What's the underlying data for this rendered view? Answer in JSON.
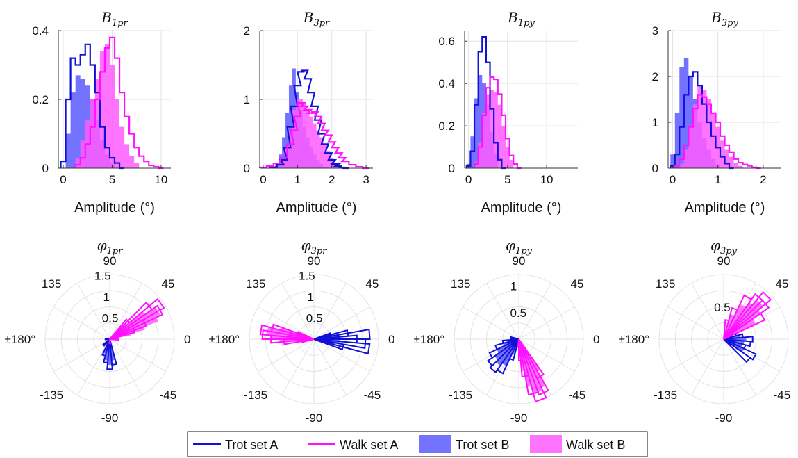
{
  "series_styles": [
    {
      "name": "Trot set A",
      "color": "#1010d8",
      "style": "outline"
    },
    {
      "name": "Walk set A",
      "color": "#ff10ff",
      "style": "outline"
    },
    {
      "name": "Trot set B",
      "color": "#5a5aff",
      "style": "filled"
    },
    {
      "name": "Walk set B",
      "color": "#ff5cff",
      "style": "filled"
    }
  ],
  "legend": {
    "labels": [
      "Trot set A",
      "Walk set A",
      "Trot set B",
      "Walk set B"
    ],
    "placement": "bottom-center"
  },
  "chart_data": [
    {
      "type": "bar",
      "histogram": true,
      "title_main": "B",
      "title_sub": "1pr",
      "xlabel": "Amplitude  (°)",
      "xlim": [
        -0.5,
        11
      ],
      "ylim": [
        0,
        0.4
      ],
      "xticks": [
        0,
        5,
        10
      ],
      "yticks": [
        0,
        0.2,
        0.4
      ],
      "grid": true,
      "series": [
        {
          "name": "Trot set A",
          "x": [
            0.0,
            0.5,
            1.0,
            1.5,
            2.0,
            2.5,
            3.0,
            3.5,
            4.0,
            4.5,
            5.0,
            5.5,
            6.0
          ],
          "values": [
            0.02,
            0.2,
            0.32,
            0.3,
            0.33,
            0.36,
            0.3,
            0.22,
            0.12,
            0.06,
            0.03,
            0.015,
            0
          ]
        },
        {
          "name": "Walk set A",
          "x": [
            1.5,
            2.0,
            2.5,
            3.0,
            3.5,
            4.0,
            4.5,
            5.0,
            5.5,
            6.0,
            6.5,
            7.0,
            7.5,
            8.0,
            8.5,
            9.0,
            9.5,
            10.0
          ],
          "values": [
            0.01,
            0.03,
            0.07,
            0.12,
            0.2,
            0.28,
            0.35,
            0.38,
            0.32,
            0.22,
            0.15,
            0.1,
            0.06,
            0.035,
            0.02,
            0.008,
            0.004,
            0
          ]
        },
        {
          "name": "Trot set B",
          "x": [
            0.5,
            1.0,
            1.5,
            2.0,
            2.5,
            3.0,
            3.5,
            4.0,
            4.5,
            5.0,
            5.5
          ],
          "values": [
            0.1,
            0.22,
            0.27,
            0.26,
            0.24,
            0.2,
            0.14,
            0.08,
            0.04,
            0.015,
            0
          ]
        },
        {
          "name": "Walk set B",
          "x": [
            1.5,
            2.0,
            2.5,
            3.0,
            3.5,
            4.0,
            4.5,
            5.0,
            5.5,
            6.0,
            6.5,
            7.0,
            7.5,
            8.0
          ],
          "values": [
            0.03,
            0.08,
            0.14,
            0.2,
            0.26,
            0.34,
            0.36,
            0.3,
            0.2,
            0.12,
            0.07,
            0.035,
            0.015,
            0
          ]
        }
      ]
    },
    {
      "type": "bar",
      "histogram": true,
      "title_main": "B",
      "title_sub": "3pr",
      "xlabel": "Amplitude  (°)",
      "xlim": [
        -0.1,
        3.2
      ],
      "ylim": [
        0,
        2
      ],
      "xticks": [
        0,
        1,
        2,
        3
      ],
      "yticks": [
        0,
        1,
        2
      ],
      "grid": true,
      "series": [
        {
          "name": "Trot set A",
          "x": [
            0.3,
            0.5,
            0.6,
            0.7,
            0.8,
            0.9,
            1.0,
            1.1,
            1.2,
            1.3,
            1.4,
            1.5,
            1.6,
            1.7,
            1.8,
            1.9,
            2.0,
            2.1,
            2.2,
            2.3,
            2.4
          ],
          "values": [
            0.01,
            0.05,
            0.12,
            0.3,
            0.6,
            0.9,
            1.2,
            1.4,
            1.42,
            1.3,
            1.1,
            0.9,
            0.7,
            0.5,
            0.35,
            0.22,
            0.12,
            0.06,
            0.03,
            0.01,
            0
          ]
        },
        {
          "name": "Walk set A",
          "x": [
            0.0,
            0.2,
            0.4,
            0.6,
            0.8,
            0.9,
            1.0,
            1.1,
            1.2,
            1.3,
            1.4,
            1.5,
            1.6,
            1.7,
            1.8,
            1.9,
            2.0,
            2.1,
            2.2,
            2.3,
            2.4,
            2.6,
            2.8,
            3.0
          ],
          "values": [
            0.01,
            0.03,
            0.07,
            0.15,
            0.35,
            0.55,
            0.75,
            0.95,
            0.9,
            0.85,
            0.8,
            0.82,
            0.75,
            0.65,
            0.55,
            0.48,
            0.38,
            0.3,
            0.22,
            0.15,
            0.1,
            0.05,
            0.02,
            0
          ]
        },
        {
          "name": "Trot set B",
          "x": [
            0.3,
            0.4,
            0.5,
            0.6,
            0.7,
            0.8,
            0.9,
            1.0,
            1.1,
            1.2,
            1.3,
            1.4,
            1.5,
            1.6,
            1.7,
            1.8,
            2.0
          ],
          "values": [
            0.03,
            0.08,
            0.2,
            0.45,
            0.8,
            1.2,
            1.45,
            1.1,
            0.85,
            0.6,
            0.45,
            0.3,
            0.2,
            0.12,
            0.06,
            0.02,
            0
          ]
        },
        {
          "name": "Walk set B",
          "x": [
            0.5,
            0.6,
            0.7,
            0.8,
            0.9,
            1.0,
            1.1,
            1.2,
            1.3,
            1.4,
            1.5,
            1.6,
            1.7,
            1.8,
            1.9,
            2.0,
            2.1,
            2.2,
            2.4
          ],
          "values": [
            0.05,
            0.12,
            0.3,
            0.55,
            0.85,
            1.0,
            1.0,
            0.95,
            0.85,
            0.75,
            0.65,
            0.55,
            0.45,
            0.35,
            0.25,
            0.15,
            0.08,
            0.04,
            0
          ]
        }
      ]
    },
    {
      "type": "bar",
      "histogram": true,
      "title_main": "B",
      "title_sub": "1py",
      "xlabel": "Amplitude  (°)",
      "xlim": [
        -0.5,
        14
      ],
      "ylim": [
        0,
        0.65
      ],
      "xticks": [
        0,
        5,
        10
      ],
      "yticks": [
        0,
        0.2,
        0.4,
        0.6
      ],
      "grid": true,
      "series": [
        {
          "name": "Trot set A",
          "x": [
            0.0,
            0.5,
            1.0,
            1.5,
            2.0,
            2.5,
            3.0,
            3.5,
            4.0,
            4.5
          ],
          "values": [
            0.01,
            0.08,
            0.3,
            0.55,
            0.62,
            0.5,
            0.28,
            0.12,
            0.04,
            0
          ]
        },
        {
          "name": "Walk set A",
          "x": [
            1.0,
            1.5,
            2.0,
            2.5,
            3.0,
            3.5,
            4.0,
            4.5,
            5.0,
            5.5,
            6.0,
            6.5
          ],
          "values": [
            0.02,
            0.1,
            0.25,
            0.38,
            0.43,
            0.42,
            0.35,
            0.25,
            0.14,
            0.06,
            0.02,
            0
          ]
        },
        {
          "name": "Trot set B",
          "x": [
            0.0,
            0.5,
            1.0,
            1.5,
            2.0,
            2.5,
            3.0,
            3.5,
            4.0
          ],
          "values": [
            0.02,
            0.15,
            0.33,
            0.44,
            0.4,
            0.3,
            0.17,
            0.07,
            0
          ]
        },
        {
          "name": "Walk set B",
          "x": [
            1.0,
            1.5,
            2.0,
            2.5,
            3.0,
            3.5,
            4.0,
            4.5,
            5.0,
            5.5,
            6.0
          ],
          "values": [
            0.03,
            0.12,
            0.26,
            0.35,
            0.37,
            0.36,
            0.3,
            0.2,
            0.1,
            0.04,
            0
          ]
        }
      ]
    },
    {
      "type": "bar",
      "histogram": true,
      "title_main": "B",
      "title_sub": "3py",
      "xlabel": "Amplitude  (°)",
      "xlim": [
        -0.1,
        2.4
      ],
      "ylim": [
        0,
        3
      ],
      "xticks": [
        0,
        1,
        2
      ],
      "yticks": [
        0,
        1,
        2,
        3
      ],
      "grid": true,
      "series": [
        {
          "name": "Trot set A",
          "x": [
            0.0,
            0.1,
            0.2,
            0.3,
            0.4,
            0.5,
            0.6,
            0.7,
            0.8,
            0.9,
            1.0,
            1.1,
            1.2,
            1.3
          ],
          "values": [
            0.05,
            0.3,
            0.9,
            1.6,
            2.0,
            2.1,
            1.8,
            1.4,
            1.0,
            0.7,
            0.45,
            0.25,
            0.1,
            0
          ]
        },
        {
          "name": "Walk set A",
          "x": [
            0.1,
            0.2,
            0.3,
            0.4,
            0.5,
            0.6,
            0.7,
            0.8,
            0.9,
            1.0,
            1.1,
            1.2,
            1.3,
            1.4,
            1.5,
            1.6,
            1.7,
            1.8,
            1.9
          ],
          "values": [
            0.05,
            0.2,
            0.5,
            0.9,
            1.3,
            1.6,
            1.55,
            1.4,
            1.2,
            1.0,
            0.7,
            0.5,
            0.35,
            0.2,
            0.12,
            0.08,
            0.05,
            0.02,
            0
          ]
        },
        {
          "name": "Trot set B",
          "x": [
            0.0,
            0.1,
            0.2,
            0.3,
            0.4,
            0.5,
            0.6,
            0.7,
            0.8,
            0.9,
            1.0,
            1.1
          ],
          "values": [
            0.3,
            1.2,
            2.2,
            2.4,
            2.0,
            1.5,
            1.0,
            0.65,
            0.4,
            0.2,
            0.08,
            0
          ]
        },
        {
          "name": "Walk set B",
          "x": [
            0.2,
            0.3,
            0.4,
            0.5,
            0.6,
            0.7,
            0.8,
            0.9,
            1.0,
            1.1,
            1.2,
            1.3,
            1.4,
            1.5,
            1.6
          ],
          "values": [
            0.1,
            0.4,
            0.9,
            1.4,
            1.8,
            1.7,
            1.5,
            1.2,
            0.9,
            0.6,
            0.4,
            0.25,
            0.12,
            0.05,
            0
          ]
        }
      ]
    },
    {
      "type": "polar-histogram",
      "title_main": "φ",
      "title_sub": "1pr",
      "rmax": 1.5,
      "rticks": [
        0.5,
        1,
        1.5
      ],
      "angle_labels": [
        "90",
        "45",
        "0",
        "-45",
        "-90",
        "-135",
        "±180°",
        "135"
      ],
      "series": [
        {
          "name": "Trot set A",
          "theta_deg": [
            -80,
            -90,
            -100,
            -110,
            -135,
            -180,
            45
          ],
          "r": [
            0.6,
            0.7,
            0.55,
            0.4,
            0.2,
            0.1,
            0.3
          ]
        },
        {
          "name": "Walk set A",
          "theta_deg": [
            20,
            25,
            30,
            35,
            40,
            45,
            0,
            -90
          ],
          "r": [
            0.6,
            0.9,
            1.35,
            1.45,
            1.2,
            0.6,
            0.2,
            0.1
          ]
        },
        {
          "name": "Trot set B",
          "theta_deg": [
            -80,
            -90,
            -100,
            -110,
            -135
          ],
          "r": [
            0.5,
            0.6,
            0.5,
            0.35,
            0.15
          ]
        },
        {
          "name": "Walk set B",
          "theta_deg": [
            15,
            20,
            25,
            30,
            35,
            40
          ],
          "r": [
            0.5,
            0.85,
            1.2,
            1.3,
            1.0,
            0.5
          ]
        }
      ]
    },
    {
      "type": "polar-histogram",
      "title_main": "φ",
      "title_sub": "3pr",
      "rmax": 1.5,
      "rticks": [
        0.5,
        1,
        1.5
      ],
      "angle_labels": [
        "90",
        "45",
        "0",
        "-45",
        "-90",
        "-135",
        "±180°",
        "135"
      ],
      "series": [
        {
          "name": "Trot set A",
          "theta_deg": [
            -15,
            -10,
            -5,
            0,
            5,
            10,
            15
          ],
          "r": [
            0.7,
            1.3,
            1.2,
            1.0,
            1.3,
            0.8,
            0.4
          ]
        },
        {
          "name": "Walk set A",
          "theta_deg": [
            160,
            165,
            170,
            175,
            180,
            -175,
            -170
          ],
          "r": [
            0.4,
            1.0,
            1.25,
            1.2,
            1.0,
            0.7,
            0.3
          ]
        },
        {
          "name": "Trot set B",
          "theta_deg": [
            -10,
            -5,
            0,
            5,
            10,
            15
          ],
          "r": [
            0.5,
            0.6,
            0.55,
            0.6,
            0.5,
            0.3
          ]
        },
        {
          "name": "Walk set B",
          "theta_deg": [
            160,
            165,
            170,
            175,
            180,
            -175
          ],
          "r": [
            0.3,
            0.8,
            1.1,
            1.0,
            0.8,
            0.4
          ]
        }
      ]
    },
    {
      "type": "polar-histogram",
      "title_main": "φ",
      "title_sub": "1py",
      "rmax": 1.2,
      "rticks": [
        0.5,
        1
      ],
      "angle_labels": [
        "90",
        "45",
        "0",
        "-45",
        "-90",
        "-135",
        "±180°",
        "135"
      ],
      "series": [
        {
          "name": "Trot set A",
          "theta_deg": [
            -110,
            -120,
            -130,
            -140,
            -150,
            -160,
            -170,
            170
          ],
          "r": [
            0.4,
            0.7,
            0.75,
            0.7,
            0.6,
            0.45,
            0.3,
            0.15
          ]
        },
        {
          "name": "Walk set A",
          "theta_deg": [
            -60,
            -65,
            -70,
            -75,
            -80,
            -85,
            -90
          ],
          "r": [
            0.8,
            1.1,
            1.2,
            1.05,
            0.7,
            0.4,
            0.15
          ]
        },
        {
          "name": "Trot set B",
          "theta_deg": [
            -110,
            -120,
            -130,
            -140,
            -150,
            -160
          ],
          "r": [
            0.3,
            0.55,
            0.6,
            0.55,
            0.45,
            0.3
          ]
        },
        {
          "name": "Walk set B",
          "theta_deg": [
            -60,
            -65,
            -70,
            -75,
            -80,
            -85
          ],
          "r": [
            0.7,
            1.0,
            1.05,
            0.9,
            0.6,
            0.3
          ]
        }
      ]
    },
    {
      "type": "polar-histogram",
      "title_main": "φ",
      "title_sub": "3py",
      "rmax": 1.0,
      "rticks": [
        0.5
      ],
      "angle_labels": [
        "90",
        "45",
        "0",
        "-45",
        "-90",
        "-135",
        "±180°",
        "135"
      ],
      "series": [
        {
          "name": "Trot set A",
          "theta_deg": [
            -40,
            -30,
            -20,
            -10,
            0,
            10,
            20
          ],
          "r": [
            0.5,
            0.55,
            0.35,
            0.42,
            0.45,
            0.3,
            0.2
          ]
        },
        {
          "name": "Walk set A",
          "theta_deg": [
            30,
            40,
            45,
            50,
            60,
            70,
            80
          ],
          "r": [
            0.7,
            0.85,
            0.95,
            0.85,
            0.75,
            0.5,
            0.3
          ]
        },
        {
          "name": "Trot set B",
          "theta_deg": [
            -30,
            -20,
            -10,
            0,
            10
          ],
          "r": [
            0.35,
            0.3,
            0.32,
            0.35,
            0.25
          ]
        },
        {
          "name": "Walk set B",
          "theta_deg": [
            30,
            40,
            45,
            50,
            60,
            70
          ],
          "r": [
            0.55,
            0.7,
            0.8,
            0.7,
            0.6,
            0.4
          ]
        }
      ]
    }
  ]
}
